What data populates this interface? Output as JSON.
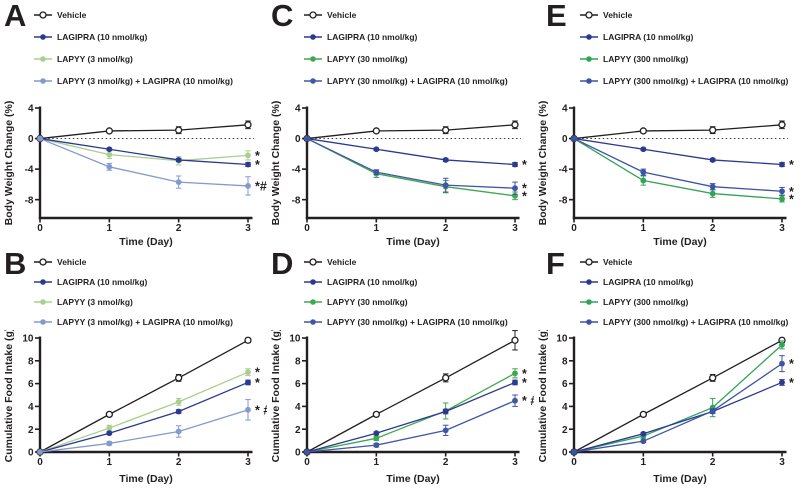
{
  "figure": {
    "background": "#ffffff",
    "axis_color": "#231f20",
    "xlabel": "Time (Day)",
    "top_row_ylabel": "Body Weight Change (%)",
    "bottom_row_ylabel": "Cumulative Food Intake (g)"
  },
  "panels": [
    {
      "letter": "A",
      "legend": [
        {
          "label": "Vehicle",
          "marker": "open-circle",
          "color": "#231f20"
        },
        {
          "label": "LAGIPRA (10 nmol/kg)",
          "marker": "circle",
          "color": "#2b3990"
        },
        {
          "label": "LAPYY (3 nmol/kg)",
          "marker": "circle",
          "color": "#a9cf8f"
        },
        {
          "label": "LAPYY (3 nmol/kg) + LAGIPRA (10 nmol/kg)",
          "marker": "circle",
          "color": "#8499cc"
        }
      ],
      "chart_data": {
        "type": "line",
        "x": [
          0,
          1,
          2,
          3
        ],
        "xticks": [
          "0",
          "1",
          "2",
          "3"
        ],
        "xlabel": "Time (Day)",
        "ylabel": "Body Weight Change (%)",
        "ylim": [
          -10.4,
          4
        ],
        "yticks": [
          4,
          0,
          -4,
          -8
        ],
        "zero_line": true,
        "series": [
          {
            "name": "Vehicle",
            "color": "#231f20",
            "marker": "open-circle",
            "values": [
              0,
              1.0,
              1.1,
              1.8
            ],
            "err": [
              0,
              0.2,
              0.45,
              0.5
            ],
            "sig": ""
          },
          {
            "name": "LAPYY (3 nmol/kg)",
            "color": "#a9cf8f",
            "marker": "circle",
            "values": [
              0,
              -2.1,
              -2.9,
              -2.2
            ],
            "err": [
              0,
              0.5,
              0.55,
              0.6
            ],
            "sig": "*"
          },
          {
            "name": "LAGIPRA (10 nmol/kg)",
            "color": "#2b3990",
            "marker": "circle",
            "values": [
              0,
              -1.4,
              -2.8,
              -3.4
            ],
            "err": [
              0,
              0.15,
              0.2,
              0.25
            ],
            "sig": "*"
          },
          {
            "name": "LAPYY (3 nmol/kg) + LAGIPRA (10 nmol/kg)",
            "color": "#8499cc",
            "marker": "circle",
            "values": [
              0,
              -3.7,
              -5.7,
              -6.2
            ],
            "err": [
              0,
              0.45,
              0.8,
              1.2
            ],
            "sig": "*#"
          }
        ]
      }
    },
    {
      "letter": "C",
      "legend": [
        {
          "label": "Vehicle",
          "marker": "open-circle",
          "color": "#231f20"
        },
        {
          "label": "LAGIPRA (10 nmol/kg)",
          "marker": "circle",
          "color": "#2b3990"
        },
        {
          "label": "LAPYY (30 nmol/kg)",
          "marker": "circle",
          "color": "#3fa94d"
        },
        {
          "label": "LAPYY (30 nmol/kg) + LAGIPRA (10 nmol/kg)",
          "marker": "circle",
          "color": "#4156a6"
        }
      ],
      "chart_data": {
        "type": "line",
        "x": [
          0,
          1,
          2,
          3
        ],
        "xticks": [
          "0",
          "1",
          "2",
          "3"
        ],
        "xlabel": "Time (Day)",
        "ylabel": "Body Weight Change (%)",
        "ylim": [
          -10.4,
          4
        ],
        "yticks": [
          4,
          0,
          -4,
          -8
        ],
        "zero_line": true,
        "series": [
          {
            "name": "Vehicle",
            "color": "#231f20",
            "marker": "open-circle",
            "values": [
              0,
              1.0,
              1.1,
              1.8
            ],
            "err": [
              0,
              0.2,
              0.45,
              0.5
            ],
            "sig": ""
          },
          {
            "name": "LAGIPRA (10 nmol/kg)",
            "color": "#2b3990",
            "marker": "circle",
            "values": [
              0,
              -1.4,
              -2.8,
              -3.4
            ],
            "err": [
              0,
              0.15,
              0.2,
              0.25
            ],
            "sig": "*"
          },
          {
            "name": "LAPYY (30 nmol/kg)",
            "color": "#3fa94d",
            "marker": "circle",
            "values": [
              0,
              -4.6,
              -6.3,
              -7.5
            ],
            "err": [
              0,
              0.5,
              0.8,
              0.5
            ],
            "sig": "*"
          },
          {
            "name": "LAPYY (30 nmol/kg) + LAGIPRA (10 nmol/kg)",
            "color": "#4156a6",
            "marker": "circle",
            "values": [
              0,
              -4.4,
              -6.1,
              -6.5
            ],
            "err": [
              0,
              0.3,
              0.9,
              0.8
            ],
            "sig": "*"
          }
        ]
      }
    },
    {
      "letter": "E",
      "legend": [
        {
          "label": "Vehicle",
          "marker": "open-circle",
          "color": "#231f20"
        },
        {
          "label": "LAGIPRA (10 nmol/kg)",
          "marker": "circle",
          "color": "#2b3990"
        },
        {
          "label": "LAPYY (300 nmol/kg)",
          "marker": "circle",
          "color": "#33a457"
        },
        {
          "label": "LAPYY (300 nmol/kg) + LAGIPRA (10 nmol/kg)",
          "marker": "circle",
          "color": "#3b54a4"
        }
      ],
      "chart_data": {
        "type": "line",
        "x": [
          0,
          1,
          2,
          3
        ],
        "xticks": [
          "0",
          "1",
          "2",
          "3"
        ],
        "xlabel": "Time (Day)",
        "ylabel": "Body Weight Change (%)",
        "ylim": [
          -10.4,
          4
        ],
        "yticks": [
          4,
          0,
          -4,
          -8
        ],
        "zero_line": true,
        "series": [
          {
            "name": "Vehicle",
            "color": "#231f20",
            "marker": "open-circle",
            "values": [
              0,
              1.0,
              1.1,
              1.8
            ],
            "err": [
              0,
              0.2,
              0.45,
              0.5
            ],
            "sig": ""
          },
          {
            "name": "LAGIPRA (10 nmol/kg)",
            "color": "#2b3990",
            "marker": "circle",
            "values": [
              0,
              -1.4,
              -2.8,
              -3.4
            ],
            "err": [
              0,
              0.15,
              0.2,
              0.25
            ],
            "sig": "*"
          },
          {
            "name": "LAPYY (300 nmol/kg)",
            "color": "#33a457",
            "marker": "circle",
            "values": [
              0,
              -5.5,
              -7.2,
              -7.9
            ],
            "err": [
              0,
              0.6,
              0.5,
              0.4
            ],
            "sig": "*"
          },
          {
            "name": "LAPYY (300 nmol/kg) + LAGIPRA (10 nmol/kg)",
            "color": "#3b54a4",
            "marker": "circle",
            "values": [
              0,
              -4.4,
              -6.3,
              -6.9
            ],
            "err": [
              0,
              0.4,
              0.4,
              0.5
            ],
            "sig": "*"
          }
        ]
      }
    },
    {
      "letter": "B",
      "legend": [
        {
          "label": "Vehicle",
          "marker": "open-circle",
          "color": "#231f20"
        },
        {
          "label": "LAGIPRA (10 nmol/kg)",
          "marker": "circle",
          "color": "#2b3990"
        },
        {
          "label": "LAPYY (3 nmol/kg)",
          "marker": "circle",
          "color": "#a9cf8f"
        },
        {
          "label": "LAPYY (3 nmol/kg) + LAGIPRA (10 nmol/kg)",
          "marker": "circle",
          "color": "#8499cc"
        }
      ],
      "chart_data": {
        "type": "line",
        "x": [
          0,
          1,
          2,
          3
        ],
        "xticks": [
          "0",
          "1",
          "2",
          "3"
        ],
        "xlabel": "Time (Day)",
        "ylabel": "Cumulative Food Intake (g)",
        "ylim": [
          0,
          10
        ],
        "yticks": [
          0,
          2,
          4,
          6,
          8,
          10
        ],
        "zero_line": false,
        "series": [
          {
            "name": "Vehicle",
            "color": "#231f20",
            "marker": "open-circle",
            "values": [
              0,
              3.3,
              6.5,
              9.8
            ],
            "err": [
              0,
              0.15,
              0.3,
              0.2
            ],
            "sig": ""
          },
          {
            "name": "LAPYY (3 nmol/kg)",
            "color": "#a9cf8f",
            "marker": "circle",
            "values": [
              0,
              2.1,
              4.4,
              7.0
            ],
            "err": [
              0,
              0.25,
              0.3,
              0.3
            ],
            "sig": "*"
          },
          {
            "name": "LAGIPRA (10 nmol/kg)",
            "color": "#2b3990",
            "marker": "circle",
            "values": [
              0,
              1.65,
              3.55,
              6.1
            ],
            "err": [
              0,
              0.1,
              0.15,
              0.2
            ],
            "sig": "*"
          },
          {
            "name": "LAPYY (3 nmol/kg) + LAGIPRA (10 nmol/kg)",
            "color": "#8499cc",
            "marker": "circle",
            "values": [
              0,
              0.75,
              1.8,
              3.7
            ],
            "err": [
              0,
              0.15,
              0.5,
              0.9
            ],
            "sig": "* #"
          }
        ]
      }
    },
    {
      "letter": "D",
      "legend": [
        {
          "label": "Vehicle",
          "marker": "open-circle",
          "color": "#231f20"
        },
        {
          "label": "LAGIPRA (10 nmol/kg)",
          "marker": "circle",
          "color": "#2b3990"
        },
        {
          "label": "LAPYY (30 nmol/kg)",
          "marker": "circle",
          "color": "#3fa94d"
        },
        {
          "label": "LAPYY (30 nmol/kg) + LAGIPRA (10 nmol/kg)",
          "marker": "circle",
          "color": "#4156a6"
        }
      ],
      "chart_data": {
        "type": "line",
        "x": [
          0,
          1,
          2,
          3
        ],
        "xticks": [
          "0",
          "1",
          "2",
          "3"
        ],
        "xlabel": "Time (Day)",
        "ylabel": "Cumulative Food Intake (g)",
        "ylim": [
          0,
          10
        ],
        "yticks": [
          0,
          2,
          4,
          6,
          8,
          10
        ],
        "zero_line": false,
        "series": [
          {
            "name": "Vehicle",
            "color": "#231f20",
            "marker": "open-circle",
            "values": [
              0,
              3.3,
              6.5,
              9.8
            ],
            "err": [
              0,
              0.15,
              0.35,
              0.85
            ],
            "sig": ""
          },
          {
            "name": "LAPYY (30 nmol/kg)",
            "color": "#3fa94d",
            "marker": "circle",
            "values": [
              0,
              1.2,
              3.6,
              6.9
            ],
            "err": [
              0,
              0.2,
              0.7,
              0.4
            ],
            "sig": "*"
          },
          {
            "name": "LAGIPRA (10 nmol/kg)",
            "color": "#2b3990",
            "marker": "circle",
            "values": [
              0,
              1.65,
              3.55,
              6.1
            ],
            "err": [
              0,
              0.1,
              0.2,
              0.2
            ],
            "sig": "*"
          },
          {
            "name": "LAPYY (30 nmol/kg) + LAGIPRA (10 nmol/kg)",
            "color": "#4156a6",
            "marker": "circle",
            "values": [
              0,
              0.6,
              1.9,
              4.5
            ],
            "err": [
              0,
              0.15,
              0.45,
              0.5
            ],
            "sig": "* #"
          }
        ]
      }
    },
    {
      "letter": "F",
      "legend": [
        {
          "label": "Vehicle",
          "marker": "open-circle",
          "color": "#231f20"
        },
        {
          "label": "LAGIPRA (10 nmol/kg)",
          "marker": "circle",
          "color": "#2b3990"
        },
        {
          "label": "LAPYY (300 nmol/kg)",
          "marker": "circle",
          "color": "#33a457"
        },
        {
          "label": "LAPYY (300 nmol/kg) + LAGIPRA (10 nmol/kg)",
          "marker": "circle",
          "color": "#3b54a4"
        }
      ],
      "chart_data": {
        "type": "line",
        "x": [
          0,
          1,
          2,
          3
        ],
        "xticks": [
          "0",
          "1",
          "2",
          "3"
        ],
        "xlabel": "Time (Day)",
        "ylabel": "Cumulative Food Intake (g)",
        "ylim": [
          0,
          10
        ],
        "yticks": [
          0,
          2,
          4,
          6,
          8,
          10
        ],
        "zero_line": false,
        "series": [
          {
            "name": "Vehicle",
            "color": "#231f20",
            "marker": "open-circle",
            "values": [
              0,
              3.3,
              6.5,
              9.8
            ],
            "err": [
              0,
              0.15,
              0.3,
              0.2
            ],
            "sig": ""
          },
          {
            "name": "LAPYY (300 nmol/kg)",
            "color": "#33a457",
            "marker": "circle",
            "values": [
              0,
              1.4,
              3.9,
              9.4
            ],
            "err": [
              0,
              0.2,
              0.8,
              0.35
            ],
            "sig": ""
          },
          {
            "name": "LAGIPRA (10 nmol/kg)",
            "color": "#2b3990",
            "marker": "circle",
            "values": [
              0,
              1.6,
              3.55,
              6.1
            ],
            "err": [
              0,
              0.1,
              0.15,
              0.25
            ],
            "sig": "*"
          },
          {
            "name": "LAPYY (300 nmol/kg) + LAGIPRA (10 nmol/kg)",
            "color": "#3b54a4",
            "marker": "circle",
            "values": [
              0,
              0.95,
              3.6,
              7.75
            ],
            "err": [
              0,
              0.1,
              0.2,
              0.7
            ],
            "sig": "*"
          }
        ]
      }
    }
  ]
}
